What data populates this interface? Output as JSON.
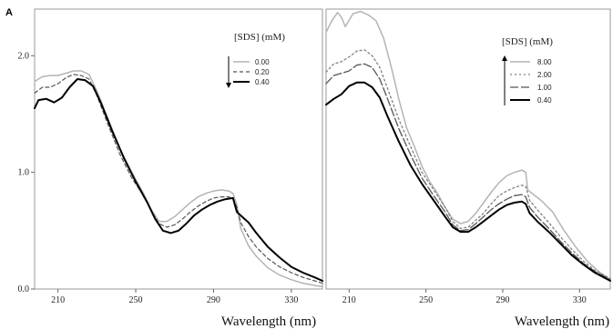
{
  "panel_letter": "A",
  "chart_data": [
    {
      "type": "line",
      "xlabel": "Wavelength (nm)",
      "ylabel": "",
      "xlim": [
        198,
        346
      ],
      "ylim": [
        0.0,
        2.4
      ],
      "xticks": [
        210,
        250,
        290,
        330
      ],
      "yticks": [
        0.0,
        1.0,
        2.0
      ],
      "ytick_labels": [
        "0.0",
        "1.0",
        "2.0"
      ],
      "grid": false,
      "legend": {
        "title": "[SDS] (mM)",
        "placement": "top-right",
        "arrow": "down",
        "entries": [
          "0.00",
          "0.20",
          "0.40"
        ]
      },
      "series": [
        {
          "name": "0.00",
          "color": "#b4b4b4",
          "dash": "solid",
          "width": 1.5,
          "points": [
            [
              198,
              1.78
            ],
            [
              202,
              1.82
            ],
            [
              206,
              1.83
            ],
            [
              210,
              1.83
            ],
            [
              214,
              1.85
            ],
            [
              218,
              1.87
            ],
            [
              222,
              1.87
            ],
            [
              226,
              1.84
            ],
            [
              230,
              1.7
            ],
            [
              236,
              1.45
            ],
            [
              242,
              1.2
            ],
            [
              248,
              1.0
            ],
            [
              254,
              0.82
            ],
            [
              258,
              0.68
            ],
            [
              262,
              0.58
            ],
            [
              266,
              0.58
            ],
            [
              270,
              0.62
            ],
            [
              274,
              0.68
            ],
            [
              278,
              0.74
            ],
            [
              282,
              0.79
            ],
            [
              286,
              0.82
            ],
            [
              290,
              0.84
            ],
            [
              294,
              0.85
            ],
            [
              298,
              0.84
            ],
            [
              300,
              0.82
            ],
            [
              302,
              0.72
            ],
            [
              304,
              0.52
            ],
            [
              308,
              0.37
            ],
            [
              312,
              0.28
            ],
            [
              318,
              0.18
            ],
            [
              324,
              0.12
            ],
            [
              330,
              0.08
            ],
            [
              336,
              0.05
            ],
            [
              342,
              0.03
            ],
            [
              346,
              0.02
            ]
          ]
        },
        {
          "name": "0.20",
          "color": "#555555",
          "dash": "4,3",
          "width": 1.2,
          "points": [
            [
              198,
              1.68
            ],
            [
              202,
              1.73
            ],
            [
              206,
              1.73
            ],
            [
              210,
              1.76
            ],
            [
              214,
              1.81
            ],
            [
              218,
              1.84
            ],
            [
              222,
              1.83
            ],
            [
              226,
              1.8
            ],
            [
              230,
              1.66
            ],
            [
              236,
              1.4
            ],
            [
              242,
              1.15
            ],
            [
              248,
              0.95
            ],
            [
              254,
              0.8
            ],
            [
              258,
              0.67
            ],
            [
              262,
              0.56
            ],
            [
              266,
              0.53
            ],
            [
              270,
              0.55
            ],
            [
              274,
              0.6
            ],
            [
              278,
              0.66
            ],
            [
              282,
              0.71
            ],
            [
              286,
              0.75
            ],
            [
              290,
              0.78
            ],
            [
              294,
              0.79
            ],
            [
              298,
              0.79
            ],
            [
              300,
              0.77
            ],
            [
              302,
              0.7
            ],
            [
              304,
              0.57
            ],
            [
              308,
              0.45
            ],
            [
              312,
              0.36
            ],
            [
              318,
              0.26
            ],
            [
              324,
              0.19
            ],
            [
              330,
              0.14
            ],
            [
              336,
              0.1
            ],
            [
              342,
              0.07
            ],
            [
              346,
              0.05
            ]
          ]
        },
        {
          "name": "0.40",
          "color": "#000000",
          "dash": "solid",
          "width": 2,
          "points": [
            [
              198,
              1.55
            ],
            [
              200,
              1.62
            ],
            [
              204,
              1.63
            ],
            [
              208,
              1.6
            ],
            [
              212,
              1.64
            ],
            [
              216,
              1.73
            ],
            [
              220,
              1.8
            ],
            [
              224,
              1.79
            ],
            [
              228,
              1.74
            ],
            [
              232,
              1.6
            ],
            [
              238,
              1.35
            ],
            [
              244,
              1.12
            ],
            [
              250,
              0.92
            ],
            [
              256,
              0.74
            ],
            [
              260,
              0.6
            ],
            [
              264,
              0.5
            ],
            [
              268,
              0.48
            ],
            [
              272,
              0.5
            ],
            [
              276,
              0.56
            ],
            [
              280,
              0.63
            ],
            [
              284,
              0.68
            ],
            [
              288,
              0.72
            ],
            [
              292,
              0.75
            ],
            [
              296,
              0.77
            ],
            [
              300,
              0.78
            ],
            [
              302,
              0.66
            ],
            [
              304,
              0.63
            ],
            [
              308,
              0.57
            ],
            [
              312,
              0.48
            ],
            [
              318,
              0.36
            ],
            [
              324,
              0.27
            ],
            [
              330,
              0.19
            ],
            [
              336,
              0.14
            ],
            [
              342,
              0.1
            ],
            [
              346,
              0.07
            ]
          ]
        }
      ]
    },
    {
      "type": "line",
      "xlabel": "Wavelength (nm)",
      "ylabel": "",
      "xlim": [
        198,
        346
      ],
      "ylim": [
        0.0,
        2.4
      ],
      "xticks": [
        210,
        250,
        290,
        330
      ],
      "yticks": [],
      "ytick_labels": [],
      "grid": false,
      "legend": {
        "title": "[SDS] (mM)",
        "placement": "top-right",
        "arrow": "up",
        "entries": [
          "8.00",
          "2.00",
          "1.00",
          "0.40"
        ]
      },
      "series": [
        {
          "name": "8.00",
          "color": "#b4b4b4",
          "dash": "solid",
          "width": 1.5,
          "points": [
            [
              198,
              2.2
            ],
            [
              201,
              2.3
            ],
            [
              204,
              2.37
            ],
            [
              206,
              2.33
            ],
            [
              208,
              2.25
            ],
            [
              212,
              2.36
            ],
            [
              216,
              2.38
            ],
            [
              220,
              2.35
            ],
            [
              224,
              2.3
            ],
            [
              228,
              2.15
            ],
            [
              232,
              1.9
            ],
            [
              236,
              1.62
            ],
            [
              240,
              1.38
            ],
            [
              244,
              1.22
            ],
            [
              248,
              1.05
            ],
            [
              252,
              0.92
            ],
            [
              256,
              0.82
            ],
            [
              260,
              0.7
            ],
            [
              264,
              0.6
            ],
            [
              268,
              0.56
            ],
            [
              272,
              0.58
            ],
            [
              276,
              0.65
            ],
            [
              280,
              0.74
            ],
            [
              284,
              0.83
            ],
            [
              288,
              0.91
            ],
            [
              292,
              0.97
            ],
            [
              296,
              1.0
            ],
            [
              300,
              1.02
            ],
            [
              302,
              1.0
            ],
            [
              303,
              0.85
            ],
            [
              306,
              0.81
            ],
            [
              310,
              0.76
            ],
            [
              316,
              0.66
            ],
            [
              322,
              0.5
            ],
            [
              328,
              0.36
            ],
            [
              334,
              0.24
            ],
            [
              340,
              0.15
            ],
            [
              346,
              0.08
            ]
          ]
        },
        {
          "name": "2.00",
          "color": "#808080",
          "dash": "2,3",
          "width": 1.3,
          "points": [
            [
              198,
              1.86
            ],
            [
              202,
              1.93
            ],
            [
              206,
              1.95
            ],
            [
              210,
              1.99
            ],
            [
              214,
              2.04
            ],
            [
              218,
              2.05
            ],
            [
              222,
              2.0
            ],
            [
              226,
              1.9
            ],
            [
              230,
              1.72
            ],
            [
              236,
              1.45
            ],
            [
              242,
              1.22
            ],
            [
              248,
              1.0
            ],
            [
              254,
              0.85
            ],
            [
              260,
              0.7
            ],
            [
              264,
              0.58
            ],
            [
              268,
              0.52
            ],
            [
              272,
              0.53
            ],
            [
              276,
              0.59
            ],
            [
              280,
              0.65
            ],
            [
              284,
              0.73
            ],
            [
              288,
              0.8
            ],
            [
              292,
              0.84
            ],
            [
              296,
              0.87
            ],
            [
              300,
              0.89
            ],
            [
              302,
              0.88
            ],
            [
              304,
              0.76
            ],
            [
              308,
              0.68
            ],
            [
              314,
              0.57
            ],
            [
              320,
              0.45
            ],
            [
              326,
              0.34
            ],
            [
              332,
              0.24
            ],
            [
              338,
              0.16
            ],
            [
              346,
              0.09
            ]
          ]
        },
        {
          "name": "1.00",
          "color": "#555555",
          "dash": "9,3",
          "width": 1.3,
          "points": [
            [
              198,
              1.76
            ],
            [
              202,
              1.83
            ],
            [
              206,
              1.85
            ],
            [
              210,
              1.87
            ],
            [
              214,
              1.92
            ],
            [
              218,
              1.93
            ],
            [
              222,
              1.9
            ],
            [
              226,
              1.8
            ],
            [
              230,
              1.63
            ],
            [
              236,
              1.37
            ],
            [
              242,
              1.15
            ],
            [
              248,
              0.95
            ],
            [
              254,
              0.8
            ],
            [
              260,
              0.66
            ],
            [
              264,
              0.55
            ],
            [
              268,
              0.5
            ],
            [
              272,
              0.51
            ],
            [
              276,
              0.56
            ],
            [
              280,
              0.62
            ],
            [
              284,
              0.68
            ],
            [
              288,
              0.73
            ],
            [
              292,
              0.77
            ],
            [
              296,
              0.8
            ],
            [
              300,
              0.81
            ],
            [
              302,
              0.79
            ],
            [
              304,
              0.7
            ],
            [
              308,
              0.62
            ],
            [
              314,
              0.52
            ],
            [
              320,
              0.41
            ],
            [
              326,
              0.31
            ],
            [
              332,
              0.22
            ],
            [
              338,
              0.15
            ],
            [
              346,
              0.08
            ]
          ]
        },
        {
          "name": "0.40",
          "color": "#000000",
          "dash": "solid",
          "width": 2,
          "points": [
            [
              198,
              1.58
            ],
            [
              202,
              1.63
            ],
            [
              206,
              1.67
            ],
            [
              210,
              1.74
            ],
            [
              214,
              1.77
            ],
            [
              218,
              1.77
            ],
            [
              222,
              1.73
            ],
            [
              226,
              1.64
            ],
            [
              230,
              1.48
            ],
            [
              236,
              1.26
            ],
            [
              242,
              1.06
            ],
            [
              248,
              0.9
            ],
            [
              254,
              0.76
            ],
            [
              260,
              0.62
            ],
            [
              264,
              0.53
            ],
            [
              268,
              0.49
            ],
            [
              272,
              0.49
            ],
            [
              276,
              0.53
            ],
            [
              280,
              0.58
            ],
            [
              284,
              0.63
            ],
            [
              288,
              0.68
            ],
            [
              292,
              0.72
            ],
            [
              296,
              0.74
            ],
            [
              300,
              0.75
            ],
            [
              302,
              0.73
            ],
            [
              304,
              0.65
            ],
            [
              308,
              0.58
            ],
            [
              314,
              0.49
            ],
            [
              320,
              0.39
            ],
            [
              326,
              0.29
            ],
            [
              332,
              0.21
            ],
            [
              338,
              0.14
            ],
            [
              346,
              0.07
            ]
          ]
        }
      ]
    }
  ]
}
